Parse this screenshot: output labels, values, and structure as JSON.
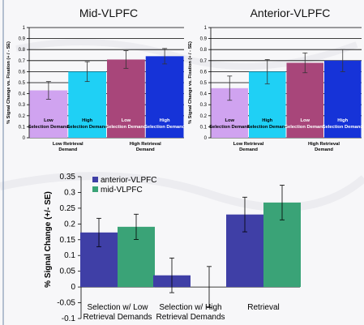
{
  "chart_data": [
    {
      "type": "bar",
      "title": "Mid-VLPFC",
      "ylabel": "% Signal Change vs. Fixation (+ / - SE)",
      "ylim": [
        0,
        1
      ],
      "yticks": [
        "0",
        "0.1",
        "0.2",
        "0.3",
        "0.4",
        "0.5",
        "0.6",
        "0.7",
        "0.8",
        "0.9",
        "1"
      ],
      "grid": true,
      "bar_labels": [
        "Low Selection Demand",
        "High Selection Demand",
        "Low Selection Demand",
        "High Selection Demand"
      ],
      "groups": [
        "Low Retrieval Demand",
        "High Retrieval Demand"
      ],
      "values": [
        0.43,
        0.6,
        0.71,
        0.74
      ],
      "errors": [
        0.08,
        0.09,
        0.08,
        0.07
      ],
      "colors": [
        "#d0a3f0",
        "#1fd0f5",
        "#a8467a",
        "#1633d8"
      ]
    },
    {
      "type": "bar",
      "title": "Anterior-VLPFC",
      "ylabel": "% Signal Change vs. Fixation (+ / - SE)",
      "ylim": [
        0,
        1
      ],
      "yticks": [
        "0",
        "0.1",
        "0.2",
        "0.3",
        "0.4",
        "0.5",
        "0.6",
        "0.7",
        "0.8",
        "0.9",
        "1"
      ],
      "grid": true,
      "bar_labels": [
        "Low Selection Demand",
        "High Selection Demand",
        "Low Selection Demand",
        "High Selection Demand"
      ],
      "groups": [
        "Low Retrieval Demand",
        "High Retrieval Demand"
      ],
      "values": [
        0.45,
        0.6,
        0.68,
        0.7
      ],
      "errors": [
        0.11,
        0.11,
        0.09,
        0.1
      ],
      "colors": [
        "#d0a3f0",
        "#1fd0f5",
        "#a8467a",
        "#1633d8"
      ]
    },
    {
      "type": "bar",
      "ylabel": "% Signal Change (+/- SE)",
      "ylim": [
        -0.1,
        0.35
      ],
      "yticks": [
        "0.35",
        "0.3",
        "0.25",
        "0.2",
        "0.15",
        "0.1",
        "0.05",
        "0",
        "-0.05",
        "-0.1"
      ],
      "grid": false,
      "legend_position": "top-left",
      "categories": [
        "Selection w/ Low\nRetrieval Demands",
        "Selection w/ High\nRetrieval Demands",
        "Retrieval"
      ],
      "series": [
        {
          "name": "anterior-VLPFC",
          "values": [
            0.173,
            0.037,
            0.23
          ],
          "errors": [
            0.045,
            0.055,
            0.055
          ],
          "color": "#3f3fa6"
        },
        {
          "name": "mid-VLPFC",
          "values": [
            0.191,
            0.0,
            0.268
          ],
          "errors": [
            0.04,
            0.065,
            0.055
          ],
          "color": "#3aa377"
        }
      ]
    }
  ]
}
